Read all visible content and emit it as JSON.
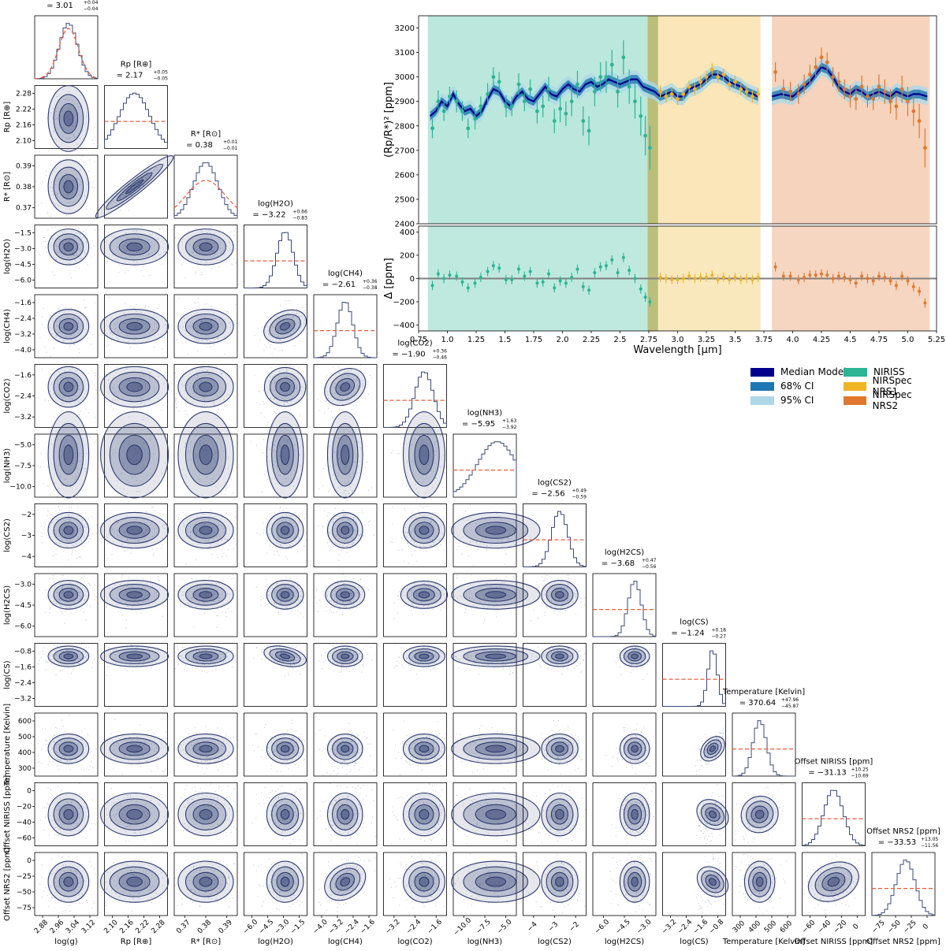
{
  "chart_data": [
    {
      "type": "corner",
      "parameters": [
        {
          "label": "log(g)",
          "title": "log(g)",
          "value": "= 3.01",
          "sup": "+0.04",
          "sub": "−0.04",
          "range": [
            2.86,
            3.14
          ],
          "ticks": [
            "2.88",
            "2.96",
            "3.04",
            "3.12"
          ],
          "mean": 3.01,
          "std": 0.04
        },
        {
          "label": "Rp [R⊕]",
          "title": "Rp [R⊕]",
          "value": "= 2.17",
          "sup": "+0.05",
          "sub": "−0.05",
          "range": [
            2.07,
            2.28
          ],
          "ticks": [
            "2.10",
            "2.16",
            "2.22",
            "2.28"
          ],
          "mean": 2.17,
          "std": 0.05
        },
        {
          "label": "R* [R⊙]",
          "title": "R* [R⊙]",
          "value": "= 0.38",
          "sup": "+0.01",
          "sub": "−0.01",
          "range": [
            0.362,
            0.398
          ],
          "ticks": [
            "0.37",
            "0.38",
            "0.39"
          ],
          "mean": 0.38,
          "std": 0.007
        },
        {
          "label": "log(H2O)",
          "title": "log(H2O)",
          "value": "= −3.22",
          "sup": "+0.66",
          "sub": "−0.83",
          "range": [
            -7.0,
            -1.2
          ],
          "ticks": [
            "−6.0",
            "−4.5",
            "−3.0",
            "−1.5"
          ],
          "mean": -3.22,
          "std": 0.75
        },
        {
          "label": "log(CH4)",
          "title": "log(CH4)",
          "value": "= −2.61",
          "sup": "+0.36",
          "sub": "−0.38",
          "range": [
            -4.1,
            -1.1
          ],
          "ticks": [
            "−4.0",
            "−3.2",
            "−2.4",
            "−1.6"
          ],
          "mean": -2.61,
          "std": 0.37
        },
        {
          "label": "log(CO2)",
          "title": "log(CO2)",
          "value": "= −1.90",
          "sup": "+0.36",
          "sub": "−0.46",
          "range": [
            -3.7,
            -0.9
          ],
          "ticks": [
            "−3.2",
            "−2.4",
            "−1.6"
          ],
          "mean": -1.9,
          "std": 0.41
        },
        {
          "label": "log(NH3)",
          "title": "log(NH3)",
          "value": "= −5.95",
          "sup": "+1.63",
          "sub": "−3.92",
          "range": [
            -12.0,
            -3.0
          ],
          "ticks": [
            "−10.0",
            "−7.5",
            "−5.0"
          ],
          "mean": -5.95,
          "std": 2.8
        },
        {
          "label": "log(CS2)",
          "title": "log(CS2)",
          "value": "= −2.56",
          "sup": "+0.49",
          "sub": "−0.59",
          "range": [
            -5.0,
            -0.8
          ],
          "ticks": [
            "−4",
            "−3",
            "−2"
          ],
          "mean": -2.56,
          "std": 0.54
        },
        {
          "label": "log(H2CS)",
          "title": "log(H2CS)",
          "value": "= −3.68",
          "sup": "+0.47",
          "sub": "−0.56",
          "range": [
            -7.0,
            -2.0
          ],
          "ticks": [
            "−6.0",
            "−4.5",
            "−3.0"
          ],
          "mean": -3.68,
          "std": 0.52
        },
        {
          "label": "log(CS)",
          "title": "log(CS)",
          "value": "= −1.24",
          "sup": "+0.18",
          "sub": "−0.27",
          "range": [
            -3.7,
            -0.6
          ],
          "ticks": [
            "−3.2",
            "−2.4",
            "−1.6",
            "−0.8"
          ],
          "mean": -1.24,
          "std": 0.23
        },
        {
          "label": "Temperature [Kelvin]",
          "title": "Temperature [Kelvin]",
          "value": "= 370.64",
          "sup": "+47.96",
          "sub": "−45.87",
          "range": [
            180,
            620
          ],
          "ticks": [
            "300",
            "400",
            "500",
            "600"
          ],
          "mean": 370.64,
          "std": 47
        },
        {
          "label": "Offset NIRISS [ppm]",
          "title": "Offset NIRISS [ppm]",
          "value": "= −31.13",
          "sup": "+10.25",
          "sub": "−10.69",
          "range": [
            -65,
            3
          ],
          "ticks": [
            "−60",
            "−40",
            "−20",
            "0"
          ],
          "mean": -31.13,
          "std": 10.5
        },
        {
          "label": "Offset NRS2 [ppm]",
          "title": "Offset NRS2 [ppm]",
          "value": "= −33.53",
          "sup": "+13.05",
          "sub": "−11.56",
          "range": [
            -78,
            5
          ],
          "ticks": [
            "−75",
            "−50",
            "−25",
            "0"
          ],
          "mean": -33.53,
          "std": 12.3
        }
      ],
      "row_ticks": [
        [],
        [
          "2.10",
          "2.16",
          "2.22",
          "2.28"
        ],
        [
          "0.37",
          "0.38",
          "0.39"
        ],
        [
          "−6.0",
          "−4.5",
          "−3.0",
          "−1.5"
        ],
        [
          "−4.0",
          "−3.2",
          "−2.4",
          "−1.6"
        ],
        [
          "−3.2",
          "−2.4",
          "−1.6"
        ],
        [
          "−10.0",
          "−7.5",
          "−5.0"
        ],
        [
          "−4",
          "−3",
          "−2"
        ],
        [
          "−6.0",
          "−4.5",
          "−3.0"
        ],
        [
          "−3.2",
          "−2.4",
          "−1.6",
          "−0.8"
        ],
        [
          "300",
          "400",
          "500",
          "600"
        ],
        [
          "−60",
          "−40",
          "−20",
          "0"
        ],
        [
          "−75",
          "−50",
          "−25",
          "0"
        ]
      ],
      "colors": {
        "contour": "#2d3a6e",
        "fill": "#2d3a6e",
        "hist": "#3b4a7a",
        "prior": "#f05a3a"
      }
    },
    {
      "type": "line",
      "title": "",
      "xlabel": "Wavelength [µm]",
      "ylabel": "(Rp/R*)² [ppm]",
      "xlim": [
        0.75,
        5.25
      ],
      "ylim": [
        2400,
        3250
      ],
      "xticks": [
        "0.75",
        "1.0",
        "1.25",
        "1.5",
        "1.75",
        "2.0",
        "2.25",
        "2.5",
        "2.75",
        "3.0",
        "3.25",
        "3.5",
        "3.75",
        "4.0",
        "4.25",
        "4.5",
        "4.75",
        "5.0",
        "5.25"
      ],
      "yticks": [
        "2400",
        "2500",
        "2600",
        "2700",
        "2800",
        "2900",
        "3000",
        "3100",
        "3200"
      ],
      "model_x": [
        0.85,
        0.9,
        0.95,
        1.0,
        1.05,
        1.1,
        1.15,
        1.2,
        1.25,
        1.3,
        1.35,
        1.4,
        1.45,
        1.5,
        1.55,
        1.6,
        1.65,
        1.7,
        1.75,
        1.8,
        1.85,
        1.9,
        1.95,
        2.0,
        2.05,
        2.1,
        2.15,
        2.2,
        2.25,
        2.3,
        2.35,
        2.4,
        2.45,
        2.5,
        2.55,
        2.6,
        2.65,
        2.7,
        2.75,
        2.8,
        2.85,
        2.9,
        2.95,
        3.0,
        3.05,
        3.1,
        3.15,
        3.2,
        3.25,
        3.3,
        3.35,
        3.4,
        3.45,
        3.5,
        3.55,
        3.6,
        3.65,
        3.7
      ],
      "model_y": [
        2840,
        2860,
        2900,
        2880,
        2930,
        2890,
        2860,
        2870,
        2840,
        2860,
        2910,
        2950,
        2940,
        2900,
        2880,
        2920,
        2940,
        2910,
        2900,
        2930,
        2960,
        2930,
        2920,
        2950,
        2970,
        2950,
        2940,
        2970,
        2980,
        2960,
        2970,
        2990,
        2980,
        2970,
        2980,
        2990,
        2990,
        2960,
        2950,
        2940,
        2920,
        2930,
        2940,
        2920,
        2920,
        2950,
        2960,
        2970,
        2990,
        3010,
        3010,
        3000,
        2980,
        2970,
        2960,
        2940,
        2930,
        2920
      ],
      "model2_x": [
        3.82,
        3.9,
        4.0,
        4.05,
        4.1,
        4.15,
        4.2,
        4.25,
        4.3,
        4.35,
        4.4,
        4.45,
        4.5,
        4.55,
        4.6,
        4.65,
        4.7,
        4.75,
        4.8,
        4.85,
        4.9,
        4.95,
        5.0,
        5.05,
        5.1,
        5.17
      ],
      "model2_y": [
        2920,
        2930,
        2920,
        2940,
        2960,
        2980,
        3010,
        3040,
        3030,
        3000,
        2960,
        2940,
        2930,
        2950,
        2940,
        2920,
        2930,
        2940,
        2930,
        2920,
        2940,
        2930,
        2920,
        2930,
        2930,
        2920
      ],
      "data": [
        {
          "name": "NIRISS",
          "x": [
            0.87,
            0.92,
            0.97,
            1.02,
            1.08,
            1.13,
            1.18,
            1.24,
            1.29,
            1.35,
            1.4,
            1.45,
            1.51,
            1.56,
            1.62,
            1.67,
            1.72,
            1.78,
            1.83,
            1.88,
            1.93,
            1.98,
            2.03,
            2.08,
            2.13,
            2.18,
            2.23,
            2.28,
            2.33,
            2.38,
            2.43,
            2.48,
            2.53,
            2.58,
            2.63,
            2.68,
            2.72,
            2.76
          ],
          "y": [
            2790,
            2900,
            2860,
            2920,
            2900,
            2860,
            2790,
            2830,
            2880,
            2930,
            3000,
            2980,
            2880,
            2880,
            2970,
            2900,
            2950,
            2860,
            2880,
            2950,
            2820,
            2870,
            2850,
            2900,
            2970,
            2820,
            2780,
            2940,
            3000,
            3000,
            3050,
            2940,
            3080,
            2960,
            2900,
            2840,
            2760,
            2710
          ],
          "err": [
            40,
            45,
            40,
            40,
            45,
            40,
            40,
            45,
            40,
            45,
            40,
            40,
            45,
            40,
            45,
            40,
            40,
            50,
            45,
            50,
            50,
            55,
            50,
            60,
            55,
            60,
            60,
            60,
            60,
            65,
            60,
            65,
            70,
            70,
            70,
            80,
            80,
            90
          ]
        },
        {
          "name": "NIRSpec NRS1",
          "x": [
            2.85,
            2.9,
            2.95,
            3.0,
            3.05,
            3.1,
            3.15,
            3.2,
            3.25,
            3.3,
            3.35,
            3.4,
            3.45,
            3.5,
            3.55,
            3.6,
            3.65,
            3.7
          ],
          "y": [
            2940,
            2920,
            2930,
            2910,
            2930,
            2960,
            2950,
            2980,
            3000,
            3030,
            3000,
            3010,
            2970,
            2980,
            2950,
            2940,
            2920,
            2930
          ],
          "err": [
            25,
            25,
            25,
            25,
            25,
            25,
            25,
            25,
            25,
            25,
            25,
            25,
            25,
            25,
            25,
            25,
            25,
            25
          ]
        },
        {
          "name": "NIRSpec NRS2",
          "x": [
            3.85,
            3.92,
            3.98,
            4.05,
            4.1,
            4.15,
            4.2,
            4.25,
            4.3,
            4.35,
            4.4,
            4.45,
            4.5,
            4.55,
            4.6,
            4.65,
            4.7,
            4.75,
            4.8,
            4.85,
            4.9,
            4.95,
            5.0,
            5.05,
            5.1,
            5.15
          ],
          "y": [
            3020,
            2950,
            2940,
            2930,
            2970,
            3010,
            3040,
            3080,
            3060,
            3000,
            2980,
            2950,
            2920,
            2910,
            2960,
            2920,
            2910,
            2960,
            2940,
            2900,
            2880,
            2950,
            2900,
            2860,
            2820,
            2710
          ],
          "err": [
            40,
            40,
            40,
            40,
            40,
            40,
            40,
            40,
            40,
            40,
            40,
            40,
            45,
            45,
            45,
            45,
            45,
            50,
            50,
            50,
            55,
            55,
            60,
            60,
            70,
            80
          ]
        }
      ],
      "legend": [
        {
          "label": "Median Model",
          "color": "#00008b"
        },
        {
          "label": "68% CI",
          "color": "#1f77b4"
        },
        {
          "label": "95% CI",
          "color": "#add8e6"
        },
        {
          "label": "NIRISS",
          "color": "#2bb594"
        },
        {
          "label": "NIRSpec NRS1",
          "color": "#f0b323"
        },
        {
          "label": "NIRSpec NRS2",
          "color": "#e0782f"
        }
      ],
      "legend_position": "below-right"
    },
    {
      "type": "scatter",
      "xlabel": "Wavelength [µm]",
      "ylabel": "Δ [ppm]",
      "xlim": [
        0.75,
        5.25
      ],
      "ylim": [
        -450,
        450
      ],
      "yticks": [
        "−400",
        "−200",
        "0",
        "200",
        "400"
      ],
      "residuals": [
        {
          "name": "NIRISS",
          "y": [
            -60,
            40,
            0,
            30,
            20,
            -30,
            -80,
            -40,
            10,
            60,
            110,
            90,
            -10,
            -10,
            80,
            20,
            60,
            -40,
            -30,
            40,
            -80,
            -20,
            -40,
            10,
            80,
            -70,
            -100,
            50,
            100,
            110,
            160,
            50,
            180,
            70,
            0,
            -90,
            -160,
            -200
          ]
        },
        {
          "name": "NIRSpec NRS1",
          "y": [
            10,
            0,
            -10,
            -10,
            0,
            20,
            0,
            10,
            10,
            30,
            -10,
            10,
            -10,
            10,
            -10,
            0,
            -10,
            10
          ]
        },
        {
          "name": "NIRSpec NRS2",
          "y": [
            100,
            20,
            20,
            -10,
            10,
            30,
            30,
            40,
            30,
            0,
            20,
            10,
            -10,
            -40,
            20,
            0,
            -20,
            20,
            10,
            -20,
            -60,
            20,
            -20,
            -70,
            -110,
            -210
          ]
        }
      ]
    }
  ]
}
